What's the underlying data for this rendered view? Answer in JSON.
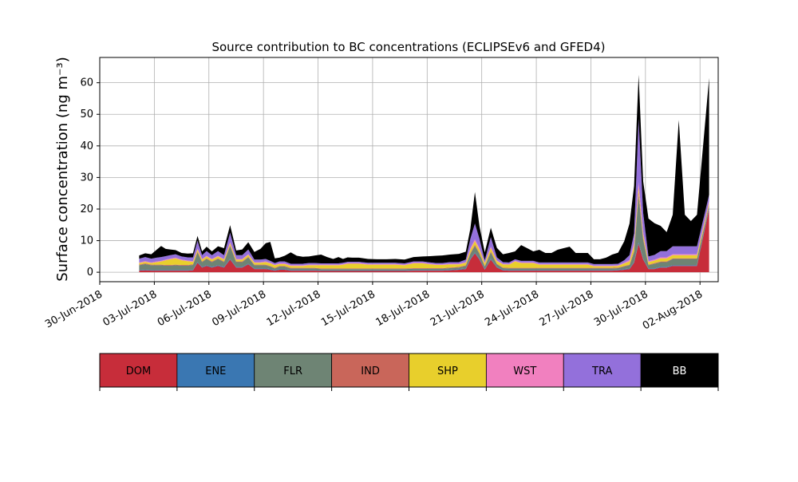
{
  "chart_data": {
    "type": "area",
    "title": "Source contribution to BC concentrations (ECLIPSEv6 and GFED4)",
    "ylabel": "Surface concentration (ng m⁻³)",
    "xlabel": "",
    "x_range": [
      "2018-06-30",
      "2018-08-03"
    ],
    "ylim": [
      -3,
      68
    ],
    "grid": true,
    "x_ticks": [
      "2018-06-30",
      "2018-07-03",
      "2018-07-06",
      "2018-07-09",
      "2018-07-12",
      "2018-07-15",
      "2018-07-18",
      "2018-07-21",
      "2018-07-24",
      "2018-07-27",
      "2018-07-30",
      "2018-08-02"
    ],
    "x_tick_labels": [
      "30-Jun-2018",
      "03-Jul-2018",
      "06-Jul-2018",
      "09-Jul-2018",
      "12-Jul-2018",
      "15-Jul-2018",
      "18-Jul-2018",
      "21-Jul-2018",
      "24-Jul-2018",
      "27-Jul-2018",
      "30-Jul-2018",
      "02-Aug-2018"
    ],
    "y_ticks": [
      0,
      10,
      20,
      30,
      40,
      50,
      60
    ],
    "y_tick_labels": [
      "0",
      "10",
      "20",
      "30",
      "40",
      "50",
      "60"
    ],
    "dates": [
      "2018-07-02",
      "2018-07-02",
      "2018-07-02",
      "2018-07-03",
      "2018-07-03",
      "2018-07-03",
      "2018-07-03",
      "2018-07-04",
      "2018-07-04",
      "2018-07-04",
      "2018-07-05",
      "2018-07-05",
      "2018-07-05",
      "2018-07-05",
      "2018-07-06",
      "2018-07-06",
      "2018-07-06",
      "2018-07-07",
      "2018-07-07",
      "2018-07-07",
      "2018-07-08",
      "2018-07-08",
      "2018-07-08",
      "2018-07-09",
      "2018-07-09",
      "2018-07-09",
      "2018-07-09",
      "2018-07-10",
      "2018-07-10",
      "2018-07-10",
      "2018-07-11",
      "2018-07-11",
      "2018-07-11",
      "2018-07-12",
      "2018-07-12",
      "2018-07-12",
      "2018-07-13",
      "2018-07-13",
      "2018-07-13",
      "2018-07-13",
      "2018-07-14",
      "2018-07-14",
      "2018-07-15",
      "2018-07-15",
      "2018-07-16",
      "2018-07-16",
      "2018-07-17",
      "2018-07-17",
      "2018-07-18",
      "2018-07-18",
      "2018-07-18",
      "2018-07-19",
      "2018-07-19",
      "2018-07-20",
      "2018-07-20",
      "2018-07-20",
      "2018-07-20",
      "2018-07-21",
      "2018-07-21",
      "2018-07-21",
      "2018-07-22",
      "2018-07-22",
      "2018-07-22",
      "2018-07-23",
      "2018-07-23",
      "2018-07-23",
      "2018-07-24",
      "2018-07-24",
      "2018-07-24",
      "2018-07-25",
      "2018-07-25",
      "2018-07-25",
      "2018-07-26",
      "2018-07-26",
      "2018-07-26",
      "2018-07-27",
      "2018-07-27",
      "2018-07-27",
      "2018-07-28",
      "2018-07-28",
      "2018-07-28",
      "2018-07-29",
      "2018-07-29",
      "2018-07-29",
      "2018-07-29",
      "2018-07-30",
      "2018-07-30",
      "2018-07-30",
      "2018-07-31",
      "2018-07-31",
      "2018-07-31",
      "2018-08-01",
      "2018-08-01",
      "2018-08-01",
      "2018-08-02"
    ],
    "series": [
      {
        "name": "DOM",
        "color": "#c72d3a",
        "values": [
          0.5,
          0.6,
          0.5,
          0.5,
          0.5,
          0.5,
          0.5,
          0.5,
          0.5,
          0.5,
          0.6,
          3.0,
          1.5,
          2.0,
          1.5,
          2.0,
          1.5,
          4.0,
          1.5,
          1.5,
          2.5,
          1.0,
          1.0,
          1.0,
          0.8,
          0.5,
          0.8,
          0.8,
          0.5,
          0.5,
          0.5,
          0.5,
          0.5,
          0.4,
          0.4,
          0.4,
          0.4,
          0.4,
          0.4,
          0.4,
          0.4,
          0.4,
          0.4,
          0.4,
          0.4,
          0.4,
          0.5,
          0.5,
          0.5,
          0.5,
          0.5,
          0.6,
          0.8,
          1.0,
          4.0,
          6.0,
          4.0,
          0.8,
          4.0,
          1.5,
          0.6,
          0.5,
          0.5,
          0.5,
          0.5,
          0.5,
          0.5,
          0.5,
          0.5,
          0.5,
          0.5,
          0.5,
          0.5,
          0.5,
          0.5,
          0.5,
          0.5,
          0.5,
          0.5,
          0.6,
          0.8,
          1.0,
          3.0,
          9.0,
          4.0,
          1.0,
          1.0,
          1.5,
          1.5,
          2.0,
          2.0,
          2.0,
          2.0,
          2.0,
          20.0
        ]
      },
      {
        "name": "ENE",
        "color": "#3a77b2",
        "values": [
          0.2,
          0.2,
          0.2,
          0.2,
          0.2,
          0.2,
          0.2,
          0.2,
          0.2,
          0.2,
          0.2,
          0.3,
          0.2,
          0.2,
          0.2,
          0.2,
          0.2,
          0.3,
          0.2,
          0.2,
          0.2,
          0.2,
          0.2,
          0.2,
          0.2,
          0.2,
          0.2,
          0.2,
          0.2,
          0.2,
          0.2,
          0.2,
          0.2,
          0.2,
          0.2,
          0.2,
          0.2,
          0.2,
          0.2,
          0.2,
          0.2,
          0.2,
          0.2,
          0.2,
          0.2,
          0.2,
          0.2,
          0.2,
          0.2,
          0.2,
          0.2,
          0.2,
          0.2,
          0.2,
          0.3,
          0.3,
          0.3,
          0.2,
          0.3,
          0.2,
          0.2,
          0.2,
          0.2,
          0.2,
          0.2,
          0.2,
          0.2,
          0.2,
          0.2,
          0.2,
          0.2,
          0.2,
          0.2,
          0.2,
          0.2,
          0.2,
          0.2,
          0.2,
          0.2,
          0.2,
          0.2,
          0.2,
          0.3,
          0.5,
          0.3,
          0.2,
          0.2,
          0.2,
          0.2,
          0.2,
          0.2,
          0.2,
          0.2,
          0.2,
          0.5
        ]
      },
      {
        "name": "FLR",
        "color": "#6e8474",
        "values": [
          1.5,
          1.8,
          1.5,
          1.5,
          1.5,
          1.4,
          1.4,
          1.5,
          1.4,
          1.4,
          1.5,
          3.0,
          1.5,
          2.0,
          1.5,
          2.0,
          1.5,
          4.0,
          1.5,
          1.5,
          2.0,
          1.0,
          1.0,
          1.0,
          0.8,
          0.5,
          0.8,
          0.8,
          0.5,
          0.5,
          0.5,
          0.5,
          0.5,
          0.4,
          0.4,
          0.4,
          0.4,
          0.4,
          0.4,
          0.4,
          0.4,
          0.4,
          0.4,
          0.4,
          0.4,
          0.4,
          0.4,
          0.4,
          0.4,
          0.4,
          0.4,
          0.5,
          0.5,
          0.8,
          1.5,
          2.0,
          1.5,
          0.8,
          2.0,
          0.8,
          0.5,
          0.5,
          0.5,
          0.5,
          0.5,
          0.5,
          0.5,
          0.5,
          0.5,
          0.5,
          0.5,
          0.5,
          0.5,
          0.5,
          0.5,
          0.5,
          0.5,
          0.5,
          0.5,
          0.5,
          0.8,
          1.0,
          3.0,
          15.0,
          6.0,
          1.0,
          1.5,
          1.5,
          1.5,
          2.0,
          2.0,
          2.0,
          2.0,
          2.0,
          0.5
        ]
      },
      {
        "name": "IND",
        "color": "#c9665a",
        "values": [
          0.2,
          0.2,
          0.2,
          0.2,
          0.2,
          0.2,
          0.2,
          0.2,
          0.2,
          0.2,
          0.2,
          0.3,
          0.2,
          0.2,
          0.2,
          0.2,
          0.2,
          0.3,
          0.2,
          0.2,
          0.2,
          0.2,
          0.2,
          0.2,
          0.2,
          0.2,
          0.2,
          0.2,
          0.2,
          0.2,
          0.2,
          0.2,
          0.2,
          0.2,
          0.2,
          0.2,
          0.2,
          0.2,
          0.2,
          0.2,
          0.2,
          0.2,
          0.2,
          0.2,
          0.2,
          0.2,
          0.2,
          0.2,
          0.2,
          0.2,
          0.2,
          0.2,
          0.2,
          0.2,
          0.3,
          0.4,
          0.3,
          0.2,
          0.3,
          0.2,
          0.2,
          0.2,
          0.2,
          0.2,
          0.2,
          0.2,
          0.2,
          0.2,
          0.2,
          0.2,
          0.2,
          0.2,
          0.2,
          0.2,
          0.2,
          0.2,
          0.2,
          0.2,
          0.2,
          0.2,
          0.2,
          0.2,
          0.5,
          1.0,
          0.5,
          0.2,
          0.2,
          0.2,
          0.2,
          0.2,
          0.2,
          0.2,
          0.2,
          0.2,
          0.5
        ]
      },
      {
        "name": "SHP",
        "color": "#e8cf2c",
        "values": [
          0.5,
          0.5,
          0.5,
          0.8,
          1.0,
          1.5,
          1.8,
          2.0,
          1.5,
          1.2,
          0.8,
          0.6,
          0.6,
          0.6,
          0.6,
          0.6,
          0.6,
          0.6,
          0.6,
          0.6,
          0.6,
          0.6,
          0.6,
          0.8,
          0.8,
          0.8,
          0.6,
          0.6,
          0.6,
          0.6,
          0.6,
          0.8,
          0.8,
          1.0,
          1.0,
          1.0,
          1.0,
          1.2,
          1.5,
          1.5,
          1.5,
          1.2,
          1.2,
          1.2,
          1.2,
          1.0,
          1.5,
          1.5,
          1.2,
          1.0,
          1.0,
          1.0,
          0.8,
          0.8,
          1.0,
          1.2,
          1.0,
          0.8,
          1.0,
          0.8,
          1.0,
          1.0,
          2.0,
          1.5,
          1.5,
          1.5,
          1.0,
          1.0,
          1.0,
          1.0,
          1.0,
          1.0,
          1.0,
          1.0,
          1.0,
          0.5,
          0.5,
          0.5,
          0.5,
          0.5,
          0.8,
          1.0,
          1.5,
          1.5,
          1.0,
          0.8,
          0.8,
          1.0,
          1.0,
          1.0,
          1.0,
          1.0,
          1.0,
          1.0,
          0.5
        ]
      },
      {
        "name": "WST",
        "color": "#f180bf",
        "values": [
          0.2,
          0.2,
          0.2,
          0.2,
          0.2,
          0.2,
          0.2,
          0.2,
          0.2,
          0.2,
          0.2,
          0.3,
          0.2,
          0.2,
          0.2,
          0.2,
          0.2,
          0.3,
          0.2,
          0.2,
          0.2,
          0.2,
          0.2,
          0.2,
          0.2,
          0.2,
          0.2,
          0.2,
          0.2,
          0.2,
          0.2,
          0.2,
          0.2,
          0.2,
          0.2,
          0.2,
          0.2,
          0.2,
          0.2,
          0.2,
          0.2,
          0.2,
          0.2,
          0.2,
          0.2,
          0.2,
          0.2,
          0.2,
          0.2,
          0.2,
          0.2,
          0.2,
          0.2,
          0.2,
          0.5,
          0.5,
          0.5,
          0.2,
          0.5,
          0.2,
          0.2,
          0.2,
          0.2,
          0.2,
          0.2,
          0.2,
          0.2,
          0.2,
          0.2,
          0.2,
          0.2,
          0.2,
          0.2,
          0.2,
          0.2,
          0.2,
          0.2,
          0.2,
          0.2,
          0.2,
          0.2,
          0.5,
          1.0,
          1.5,
          1.0,
          0.3,
          0.3,
          0.3,
          0.3,
          0.3,
          0.3,
          0.3,
          0.3,
          0.3,
          0.5
        ]
      },
      {
        "name": "TRA",
        "color": "#9370db",
        "values": [
          1.2,
          1.3,
          1.2,
          1.2,
          1.2,
          1.1,
          1.1,
          1.1,
          1.0,
          1.0,
          1.2,
          2.5,
          1.2,
          1.5,
          1.2,
          1.5,
          1.2,
          3.0,
          1.2,
          1.2,
          1.5,
          0.8,
          0.8,
          0.8,
          0.6,
          0.5,
          0.6,
          0.6,
          0.5,
          0.5,
          0.5,
          0.5,
          0.5,
          0.4,
          0.4,
          0.4,
          0.4,
          0.4,
          0.4,
          0.4,
          0.4,
          0.4,
          0.4,
          0.4,
          0.4,
          0.4,
          0.4,
          0.4,
          0.4,
          0.4,
          0.4,
          0.5,
          0.5,
          0.8,
          3.0,
          5.0,
          3.0,
          0.8,
          3.0,
          1.0,
          0.5,
          0.5,
          0.5,
          0.5,
          0.5,
          0.5,
          0.5,
          0.5,
          0.5,
          0.5,
          0.5,
          0.5,
          0.5,
          0.5,
          0.5,
          0.5,
          0.5,
          0.5,
          0.5,
          0.5,
          0.8,
          1.5,
          3.0,
          20.0,
          6.0,
          1.5,
          1.5,
          2.0,
          2.0,
          2.5,
          2.5,
          2.5,
          2.5,
          2.5,
          2.0
        ]
      },
      {
        "name": "BB",
        "color": "#000000",
        "values": [
          1.0,
          1.2,
          1.4,
          2.5,
          3.5,
          2.3,
          1.8,
          1.3,
          1.1,
          1.2,
          1.3,
          1.5,
          1.2,
          1.4,
          1.2,
          1.5,
          2.2,
          2.4,
          1.5,
          1.8,
          2.3,
          2.4,
          3.4,
          5.0,
          6.0,
          1.5,
          1.2,
          1.8,
          3.6,
          2.5,
          2.2,
          2.1,
          2.4,
          2.8,
          2.0,
          1.4,
          2.0,
          1.2,
          1.4,
          1.3,
          1.3,
          1.2,
          1.1,
          1.1,
          1.2,
          1.2,
          1.4,
          1.6,
          2.0,
          2.3,
          2.4,
          2.4,
          2.6,
          2.5,
          3.2,
          10.0,
          4.0,
          2.5,
          3.0,
          3.0,
          2.5,
          3.0,
          2.5,
          5.0,
          4.0,
          3.0,
          4.0,
          3.0,
          3.0,
          4.0,
          4.5,
          5.0,
          3.0,
          3.0,
          3.0,
          1.5,
          1.5,
          2.0,
          3.0,
          3.5,
          6.0,
          10.0,
          15.0,
          14.0,
          10.0,
          12.0,
          10.0,
          8.0,
          6.0,
          10.0,
          40.0,
          10.0,
          8.0,
          10.0,
          37.0
        ]
      }
    ]
  },
  "legend": {
    "entries": [
      {
        "label": "DOM",
        "color": "#c72d3a",
        "text_color": "#000000"
      },
      {
        "label": "ENE",
        "color": "#3a77b2",
        "text_color": "#000000"
      },
      {
        "label": "FLR",
        "color": "#6e8474",
        "text_color": "#000000"
      },
      {
        "label": "IND",
        "color": "#c9665a",
        "text_color": "#000000"
      },
      {
        "label": "SHP",
        "color": "#e8cf2c",
        "text_color": "#000000"
      },
      {
        "label": "WST",
        "color": "#f180bf",
        "text_color": "#000000"
      },
      {
        "label": "TRA",
        "color": "#9370db",
        "text_color": "#000000"
      },
      {
        "label": "BB",
        "color": "#000000",
        "text_color": "#ffffff"
      }
    ]
  }
}
